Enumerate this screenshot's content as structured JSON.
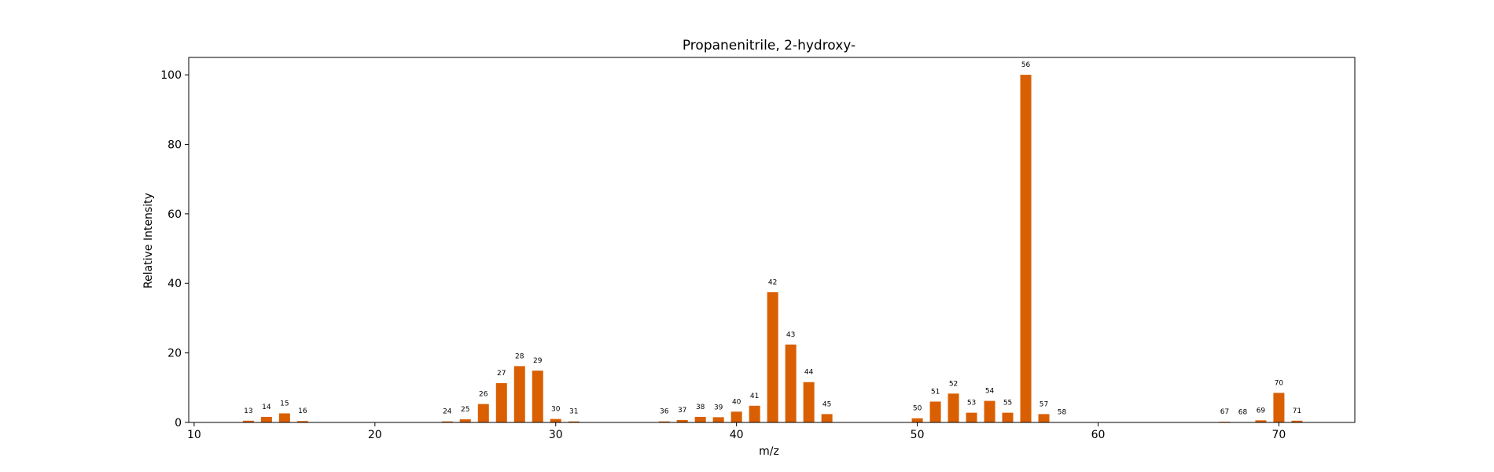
{
  "chart_data": {
    "type": "bar",
    "title": "Propanenitrile, 2-hydroxy-",
    "xlabel": "m/z",
    "ylabel": "Relative Intensity",
    "xlim": [
      9.7,
      74.2
    ],
    "ylim": [
      0,
      105
    ],
    "xticks": [
      10,
      20,
      30,
      40,
      50,
      60,
      70
    ],
    "yticks": [
      0,
      20,
      40,
      60,
      80,
      100
    ],
    "bar_color": "#d95f02",
    "grid": false,
    "legend": "none",
    "points": [
      {
        "mz": 13,
        "intensity": 0.5,
        "label": "13"
      },
      {
        "mz": 14,
        "intensity": 1.6,
        "label": "14"
      },
      {
        "mz": 15,
        "intensity": 2.6,
        "label": "15"
      },
      {
        "mz": 16,
        "intensity": 0.4,
        "label": "16"
      },
      {
        "mz": 24,
        "intensity": 0.3,
        "label": "24"
      },
      {
        "mz": 25,
        "intensity": 0.9,
        "label": "25"
      },
      {
        "mz": 26,
        "intensity": 5.3,
        "label": "26"
      },
      {
        "mz": 27,
        "intensity": 11.3,
        "label": "27"
      },
      {
        "mz": 28,
        "intensity": 16.2,
        "label": "28"
      },
      {
        "mz": 29,
        "intensity": 14.9,
        "label": "29"
      },
      {
        "mz": 30,
        "intensity": 1.0,
        "label": "30"
      },
      {
        "mz": 31,
        "intensity": 0.3,
        "label": "31"
      },
      {
        "mz": 36,
        "intensity": 0.3,
        "label": "36"
      },
      {
        "mz": 37,
        "intensity": 0.7,
        "label": "37"
      },
      {
        "mz": 38,
        "intensity": 1.6,
        "label": "38"
      },
      {
        "mz": 39,
        "intensity": 1.5,
        "label": "39"
      },
      {
        "mz": 40,
        "intensity": 3.1,
        "label": "40"
      },
      {
        "mz": 41,
        "intensity": 4.8,
        "label": "41"
      },
      {
        "mz": 42,
        "intensity": 37.5,
        "label": "42"
      },
      {
        "mz": 43,
        "intensity": 22.4,
        "label": "43"
      },
      {
        "mz": 44,
        "intensity": 11.6,
        "label": "44"
      },
      {
        "mz": 45,
        "intensity": 2.4,
        "label": "45"
      },
      {
        "mz": 50,
        "intensity": 1.2,
        "label": "50"
      },
      {
        "mz": 51,
        "intensity": 6.0,
        "label": "51"
      },
      {
        "mz": 52,
        "intensity": 8.3,
        "label": "52"
      },
      {
        "mz": 53,
        "intensity": 2.8,
        "label": "53"
      },
      {
        "mz": 54,
        "intensity": 6.2,
        "label": "54"
      },
      {
        "mz": 55,
        "intensity": 2.8,
        "label": "55"
      },
      {
        "mz": 56,
        "intensity": 100.0,
        "label": "56"
      },
      {
        "mz": 57,
        "intensity": 2.4,
        "label": "57"
      },
      {
        "mz": 58,
        "intensity": 0.1,
        "label": "58"
      },
      {
        "mz": 67,
        "intensity": 0.2,
        "label": "67"
      },
      {
        "mz": 68,
        "intensity": 0.1,
        "label": "68"
      },
      {
        "mz": 69,
        "intensity": 0.6,
        "label": "69"
      },
      {
        "mz": 70,
        "intensity": 8.5,
        "label": "70"
      },
      {
        "mz": 71,
        "intensity": 0.5,
        "label": "71"
      }
    ]
  }
}
